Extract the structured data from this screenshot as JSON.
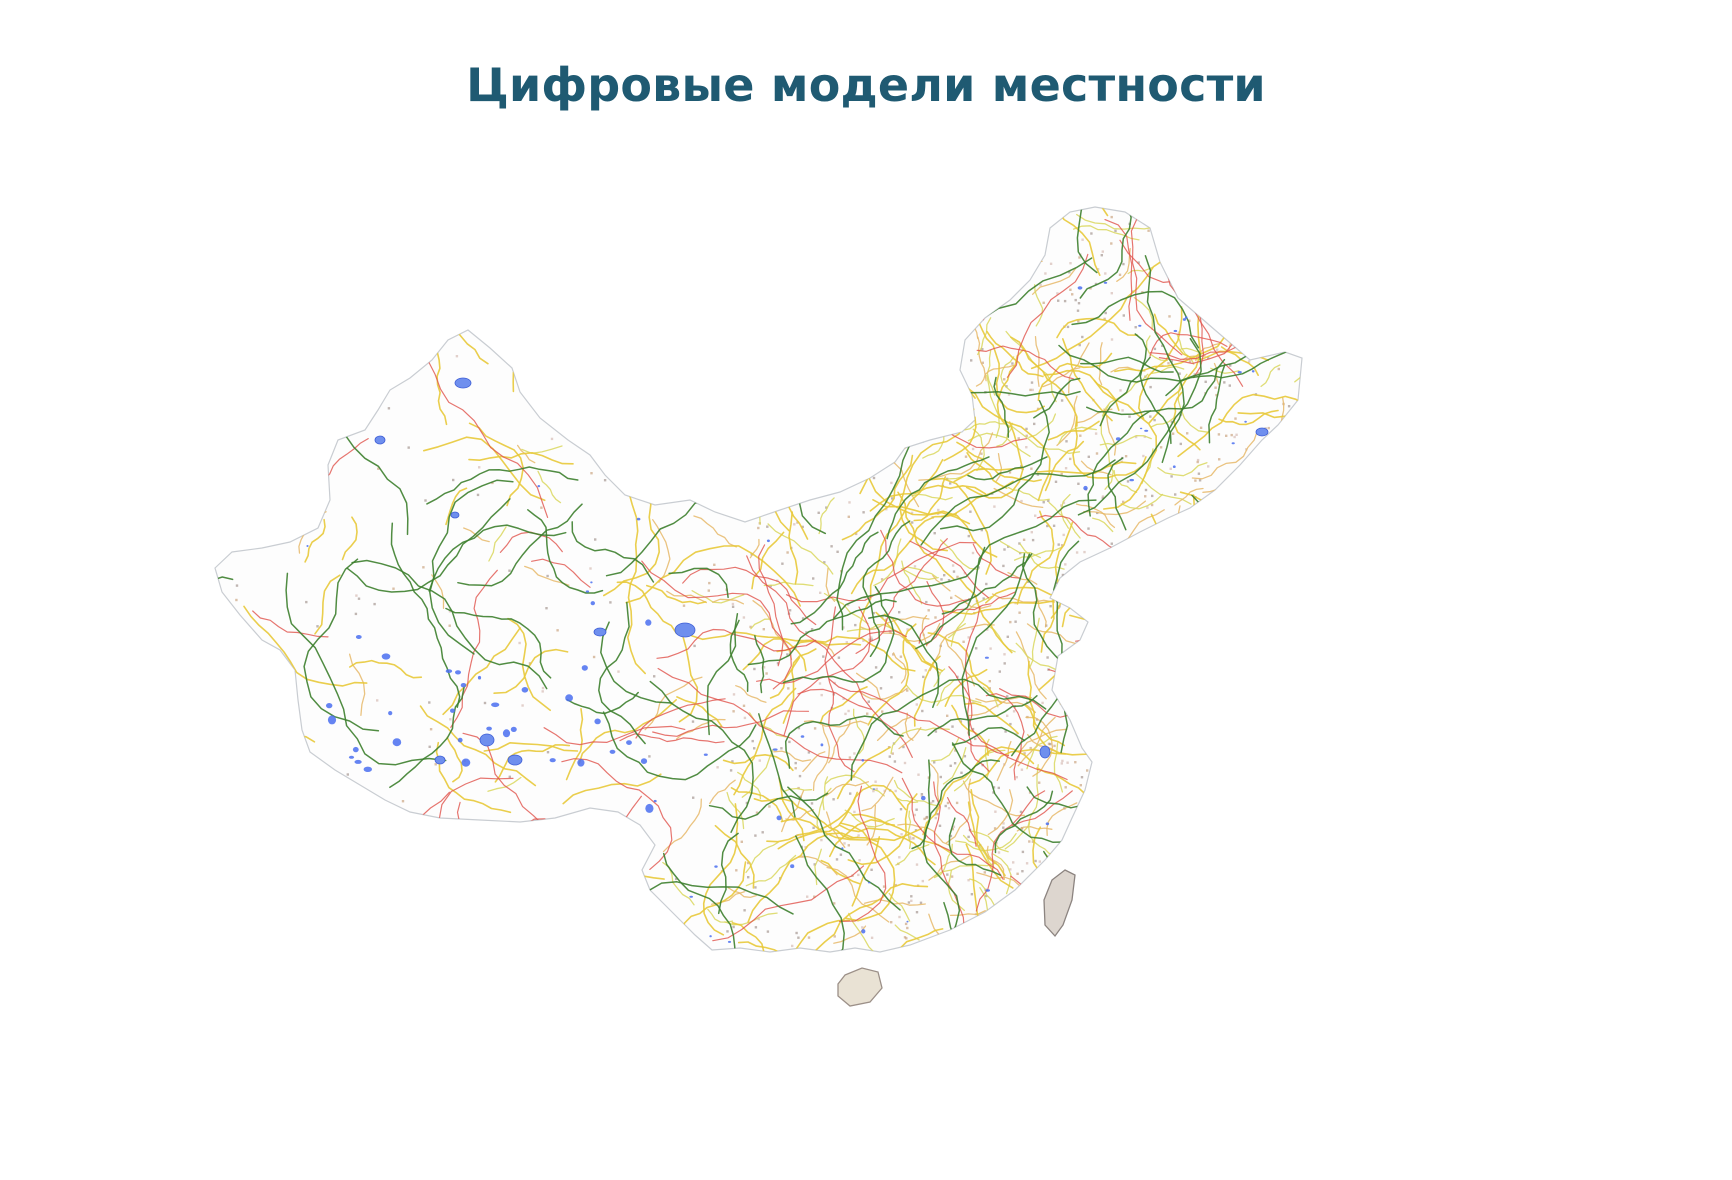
{
  "title": "Цифровые модели местности",
  "colors": {
    "title": "#1f5a72",
    "outline": "#c9cdd2",
    "road_major": "#e0534b",
    "road_secondary": "#e8c93a",
    "road_minor": "#d9d75e",
    "railway": "#3d7f2e",
    "water": "#4a6ef0",
    "settlement": "#a0908a"
  },
  "map": {
    "region": "China",
    "layers": [
      "outline",
      "water",
      "roads",
      "railways",
      "settlements"
    ]
  }
}
